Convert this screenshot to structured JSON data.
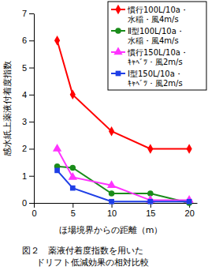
{
  "chart_data": {
    "type": "line",
    "title": "図２　薬液付着度指数を用いた\nドリフト低減効果の相対比較",
    "x_label": "ほ場境界からの距離（m）",
    "y_label": "感水紙上薬液付着度指数",
    "x": [
      3,
      5,
      10,
      15,
      20
    ],
    "series": [
      {
        "name": "慣行100L/10a・\n水稲・風4m/s",
        "color": "#ff0000",
        "marker": "diamond",
        "values": [
          6,
          4,
          2.65,
          2,
          2
        ]
      },
      {
        "name": "Ⅱ型100L/10a・\n水稲・風4m/s",
        "color": "#1a8c1a",
        "marker": "circle",
        "values": [
          1.35,
          1.3,
          0.35,
          0.35,
          0
        ]
      },
      {
        "name": "慣行150L/10a・\nｷｬﾍﾞﾂ・風2m/s",
        "color": "#ff33ff",
        "marker": "triangle",
        "values": [
          2,
          0.95,
          0.65,
          0.1,
          0.1
        ]
      },
      {
        "name": "Ⅰ型150L/10a・\nｷｬﾍﾞﾂ・風2m/s",
        "color": "#1f3fe6",
        "marker": "square",
        "values": [
          1.2,
          0.55,
          0.05,
          0.05,
          0.05
        ]
      }
    ],
    "xlim": [
      0,
      21
    ],
    "xticks": [
      0,
      5,
      10,
      15,
      20
    ],
    "ylim": [
      0,
      7
    ],
    "yticks": [
      0,
      1,
      2,
      3,
      4,
      5,
      6,
      7
    ],
    "legend": "upper right",
    "grid": false
  }
}
